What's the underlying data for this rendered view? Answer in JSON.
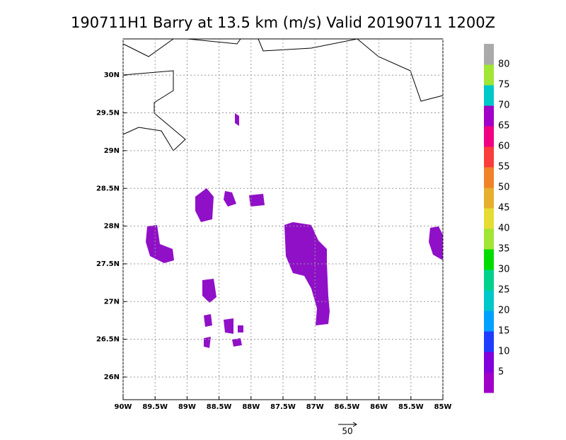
{
  "chart_data": {
    "type": "map",
    "title": "190711H1 Barry at 13.5 km (m/s) Valid 20190711 1200Z",
    "xlim": [
      -90,
      -85
    ],
    "ylim": [
      25.7,
      30.48
    ],
    "grid": true,
    "xticks": [
      {
        "value": -90,
        "label": "90W"
      },
      {
        "value": -89.5,
        "label": "89.5W"
      },
      {
        "value": -89,
        "label": "89W"
      },
      {
        "value": -88.5,
        "label": "88.5W"
      },
      {
        "value": -88,
        "label": "88W"
      },
      {
        "value": -87.5,
        "label": "87.5W"
      },
      {
        "value": -87,
        "label": "87W"
      },
      {
        "value": -86.5,
        "label": "86.5W"
      },
      {
        "value": -86,
        "label": "86W"
      },
      {
        "value": -85.5,
        "label": "85.5W"
      },
      {
        "value": -85,
        "label": "85W"
      }
    ],
    "yticks": [
      {
        "value": 26,
        "label": "26N"
      },
      {
        "value": 26.5,
        "label": "26.5N"
      },
      {
        "value": 27,
        "label": "27N"
      },
      {
        "value": 27.5,
        "label": "27.5N"
      },
      {
        "value": 28,
        "label": "28N"
      },
      {
        "value": 28.5,
        "label": "28.5N"
      },
      {
        "value": 29,
        "label": "29N"
      },
      {
        "value": 29.5,
        "label": "29.5N"
      },
      {
        "value": 30,
        "label": "30N"
      }
    ],
    "colorbar": {
      "lim": [
        0,
        85
      ],
      "ticks": [
        5,
        10,
        15,
        20,
        25,
        30,
        35,
        40,
        45,
        50,
        55,
        60,
        65,
        70,
        75,
        80
      ],
      "colors": [
        "#a000c8",
        "#8200dc",
        "#1e3cff",
        "#00a0ff",
        "#00c8c8",
        "#00d28c",
        "#00dc00",
        "#a0e632",
        "#e6dc32",
        "#e6af2d",
        "#f08228",
        "#fa3c3c",
        "#f00082",
        "#a000c8",
        "#00c8c8",
        "#a0e632",
        "#aaaaaa"
      ]
    },
    "vector_scale": 50
  }
}
